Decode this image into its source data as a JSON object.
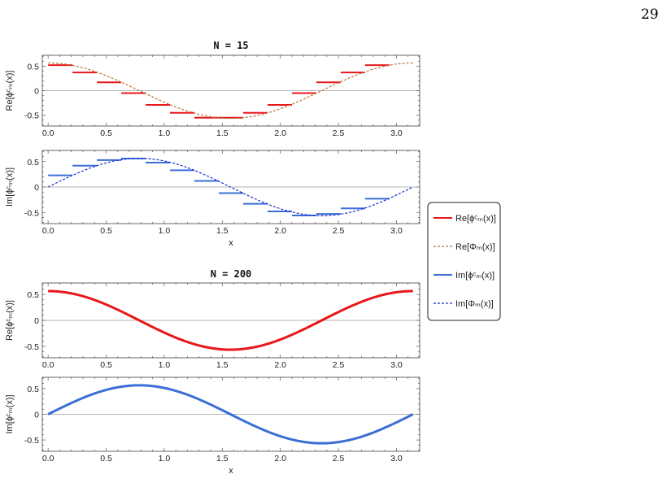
{
  "page_number": "29",
  "chart_data": [
    {
      "type": "line",
      "title": "N = 15",
      "ylabel": "Re[ϕᶜₘ(x)]",
      "xlabel": "",
      "xlim": [
        -0.05,
        3.2
      ],
      "ylim": [
        -0.72,
        0.72
      ],
      "xticks": [
        "0.0",
        "0.5",
        "1.0",
        "1.5",
        "2.0",
        "2.5",
        "3.0"
      ],
      "yticks": [
        "0.5",
        "0",
        "-0.5"
      ],
      "series": [
        {
          "name": "Re[ϕᶜₘ(x)]",
          "style": "steps",
          "color": "#e8171b",
          "segments": [
            [
              0.0,
              0.21,
              0.52
            ],
            [
              0.21,
              0.42,
              0.37
            ],
            [
              0.42,
              0.63,
              0.17
            ],
            [
              0.63,
              0.84,
              -0.05
            ],
            [
              0.84,
              1.05,
              -0.29
            ],
            [
              1.05,
              1.26,
              -0.45
            ],
            [
              1.26,
              1.47,
              -0.55
            ],
            [
              1.47,
              1.68,
              -0.55
            ],
            [
              1.68,
              1.89,
              -0.45
            ],
            [
              1.89,
              2.1,
              -0.29
            ],
            [
              2.1,
              2.31,
              -0.05
            ],
            [
              2.31,
              2.52,
              0.17
            ],
            [
              2.52,
              2.73,
              0.37
            ],
            [
              2.73,
              2.94,
              0.52
            ]
          ]
        },
        {
          "name": "Re[Φₘ(x)]",
          "style": "dashed",
          "color": "#b8733a",
          "function": "0.564*cos(2x)",
          "x_range": [
            0,
            3.14159
          ]
        }
      ]
    },
    {
      "type": "line",
      "title": "",
      "ylabel": "Im[ϕᶜₘ(x)]",
      "xlabel": "x",
      "xlim": [
        -0.05,
        3.2
      ],
      "ylim": [
        -0.72,
        0.72
      ],
      "xticks": [
        "0.0",
        "0.5",
        "1.0",
        "1.5",
        "2.0",
        "2.5",
        "3.0"
      ],
      "yticks": [
        "0.5",
        "0",
        "-0.5"
      ],
      "series": [
        {
          "name": "Im[ϕᶜₘ(x)]",
          "style": "steps",
          "color": "#3a6fd6",
          "segments": [
            [
              0.0,
              0.21,
              0.23
            ],
            [
              0.21,
              0.42,
              0.42
            ],
            [
              0.42,
              0.63,
              0.53
            ],
            [
              0.63,
              0.84,
              0.56
            ],
            [
              0.84,
              1.05,
              0.48
            ],
            [
              1.05,
              1.26,
              0.33
            ],
            [
              1.26,
              1.47,
              0.12
            ],
            [
              1.47,
              1.68,
              -0.12
            ],
            [
              1.68,
              1.89,
              -0.33
            ],
            [
              1.89,
              2.1,
              -0.48
            ],
            [
              2.1,
              2.31,
              -0.56
            ],
            [
              2.31,
              2.52,
              -0.53
            ],
            [
              2.52,
              2.73,
              -0.42
            ],
            [
              2.73,
              2.94,
              -0.23
            ]
          ]
        },
        {
          "name": "Im[Φₘ(x)]",
          "style": "dashed",
          "color": "#1b2fd1",
          "function": "0.564*sin(2x)",
          "x_range": [
            0,
            3.14159
          ]
        }
      ]
    },
    {
      "type": "line",
      "title": "N = 200",
      "ylabel": "Re[ϕᶜₘ(x)]",
      "xlabel": "",
      "xlim": [
        -0.05,
        3.2
      ],
      "ylim": [
        -0.72,
        0.72
      ],
      "xticks": [
        "0.0",
        "0.5",
        "1.0",
        "1.5",
        "2.0",
        "2.5",
        "3.0"
      ],
      "yticks": [
        "0.5",
        "0",
        "-0.5"
      ],
      "series": [
        {
          "name": "Re[ϕᶜₘ(x)]",
          "style": "solid-thick",
          "color": "#e8171b",
          "function": "0.564*cos(2x)",
          "x_range": [
            0,
            3.14159
          ]
        }
      ]
    },
    {
      "type": "line",
      "title": "",
      "ylabel": "Im[ϕᶜₘ(x)]",
      "xlabel": "x",
      "xlim": [
        -0.05,
        3.2
      ],
      "ylim": [
        -0.72,
        0.72
      ],
      "xticks": [
        "0.0",
        "0.5",
        "1.0",
        "1.5",
        "2.0",
        "2.5",
        "3.0"
      ],
      "yticks": [
        "0.5",
        "0",
        "-0.5"
      ],
      "series": [
        {
          "name": "Im[ϕᶜₘ(x)]",
          "style": "solid-thick",
          "color": "#3a6fd6",
          "function": "0.564*sin(2x)",
          "x_range": [
            0,
            3.14159
          ]
        }
      ]
    }
  ],
  "legend": {
    "placement": "right",
    "entries": [
      {
        "label": "Re[ϕᶜₘ(x)]",
        "color": "#e8171b",
        "style": "solid"
      },
      {
        "label": "Re[Φₘ(x)]",
        "color": "#b8733a",
        "style": "dashed"
      },
      {
        "label": "Im[ϕᶜₘ(x)]",
        "color": "#3a6fd6",
        "style": "solid"
      },
      {
        "label": "Im[Φₘ(x)]",
        "color": "#1b2fd1",
        "style": "dashed"
      }
    ]
  }
}
